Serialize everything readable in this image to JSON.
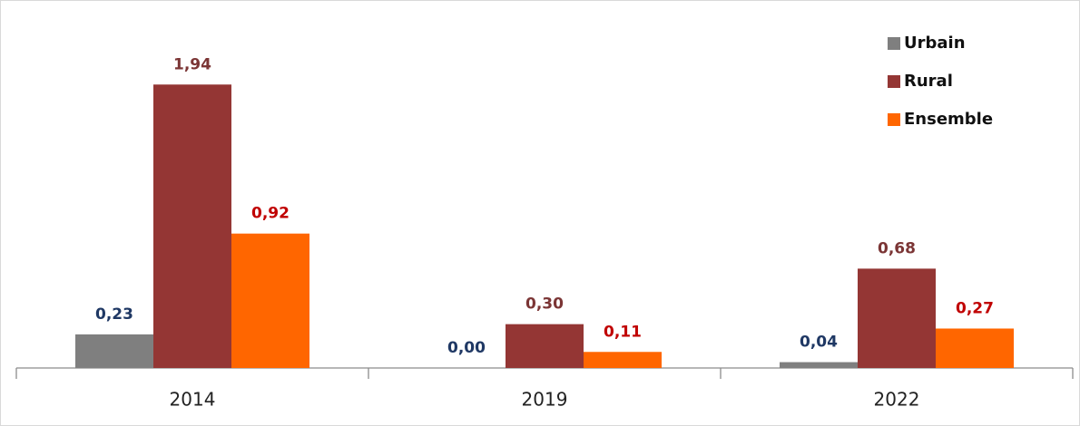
{
  "chart_data": {
    "type": "bar",
    "categories": [
      "2014",
      "2019",
      "2022"
    ],
    "series": [
      {
        "name": "Urbain",
        "color": "#7f7f7f",
        "label_color": "#1f3864",
        "values": [
          0.23,
          0,
          0.04
        ],
        "value_labels": [
          "0,23",
          "0,00",
          "0,04"
        ]
      },
      {
        "name": "Rural",
        "color": "#943634",
        "label_color": "#7b3535",
        "values": [
          1.94,
          0.3,
          0.68
        ],
        "value_labels": [
          "1,94",
          "0,30",
          "0,68"
        ]
      },
      {
        "name": "Ensemble",
        "color": "#ff6600",
        "label_color": "#c00000",
        "values": [
          0.92,
          0.11,
          0.27
        ],
        "value_labels": [
          "0,92",
          "0,11",
          "0,27"
        ]
      }
    ],
    "ylim": [
      0,
      2.5
    ],
    "legend": "top-right"
  }
}
